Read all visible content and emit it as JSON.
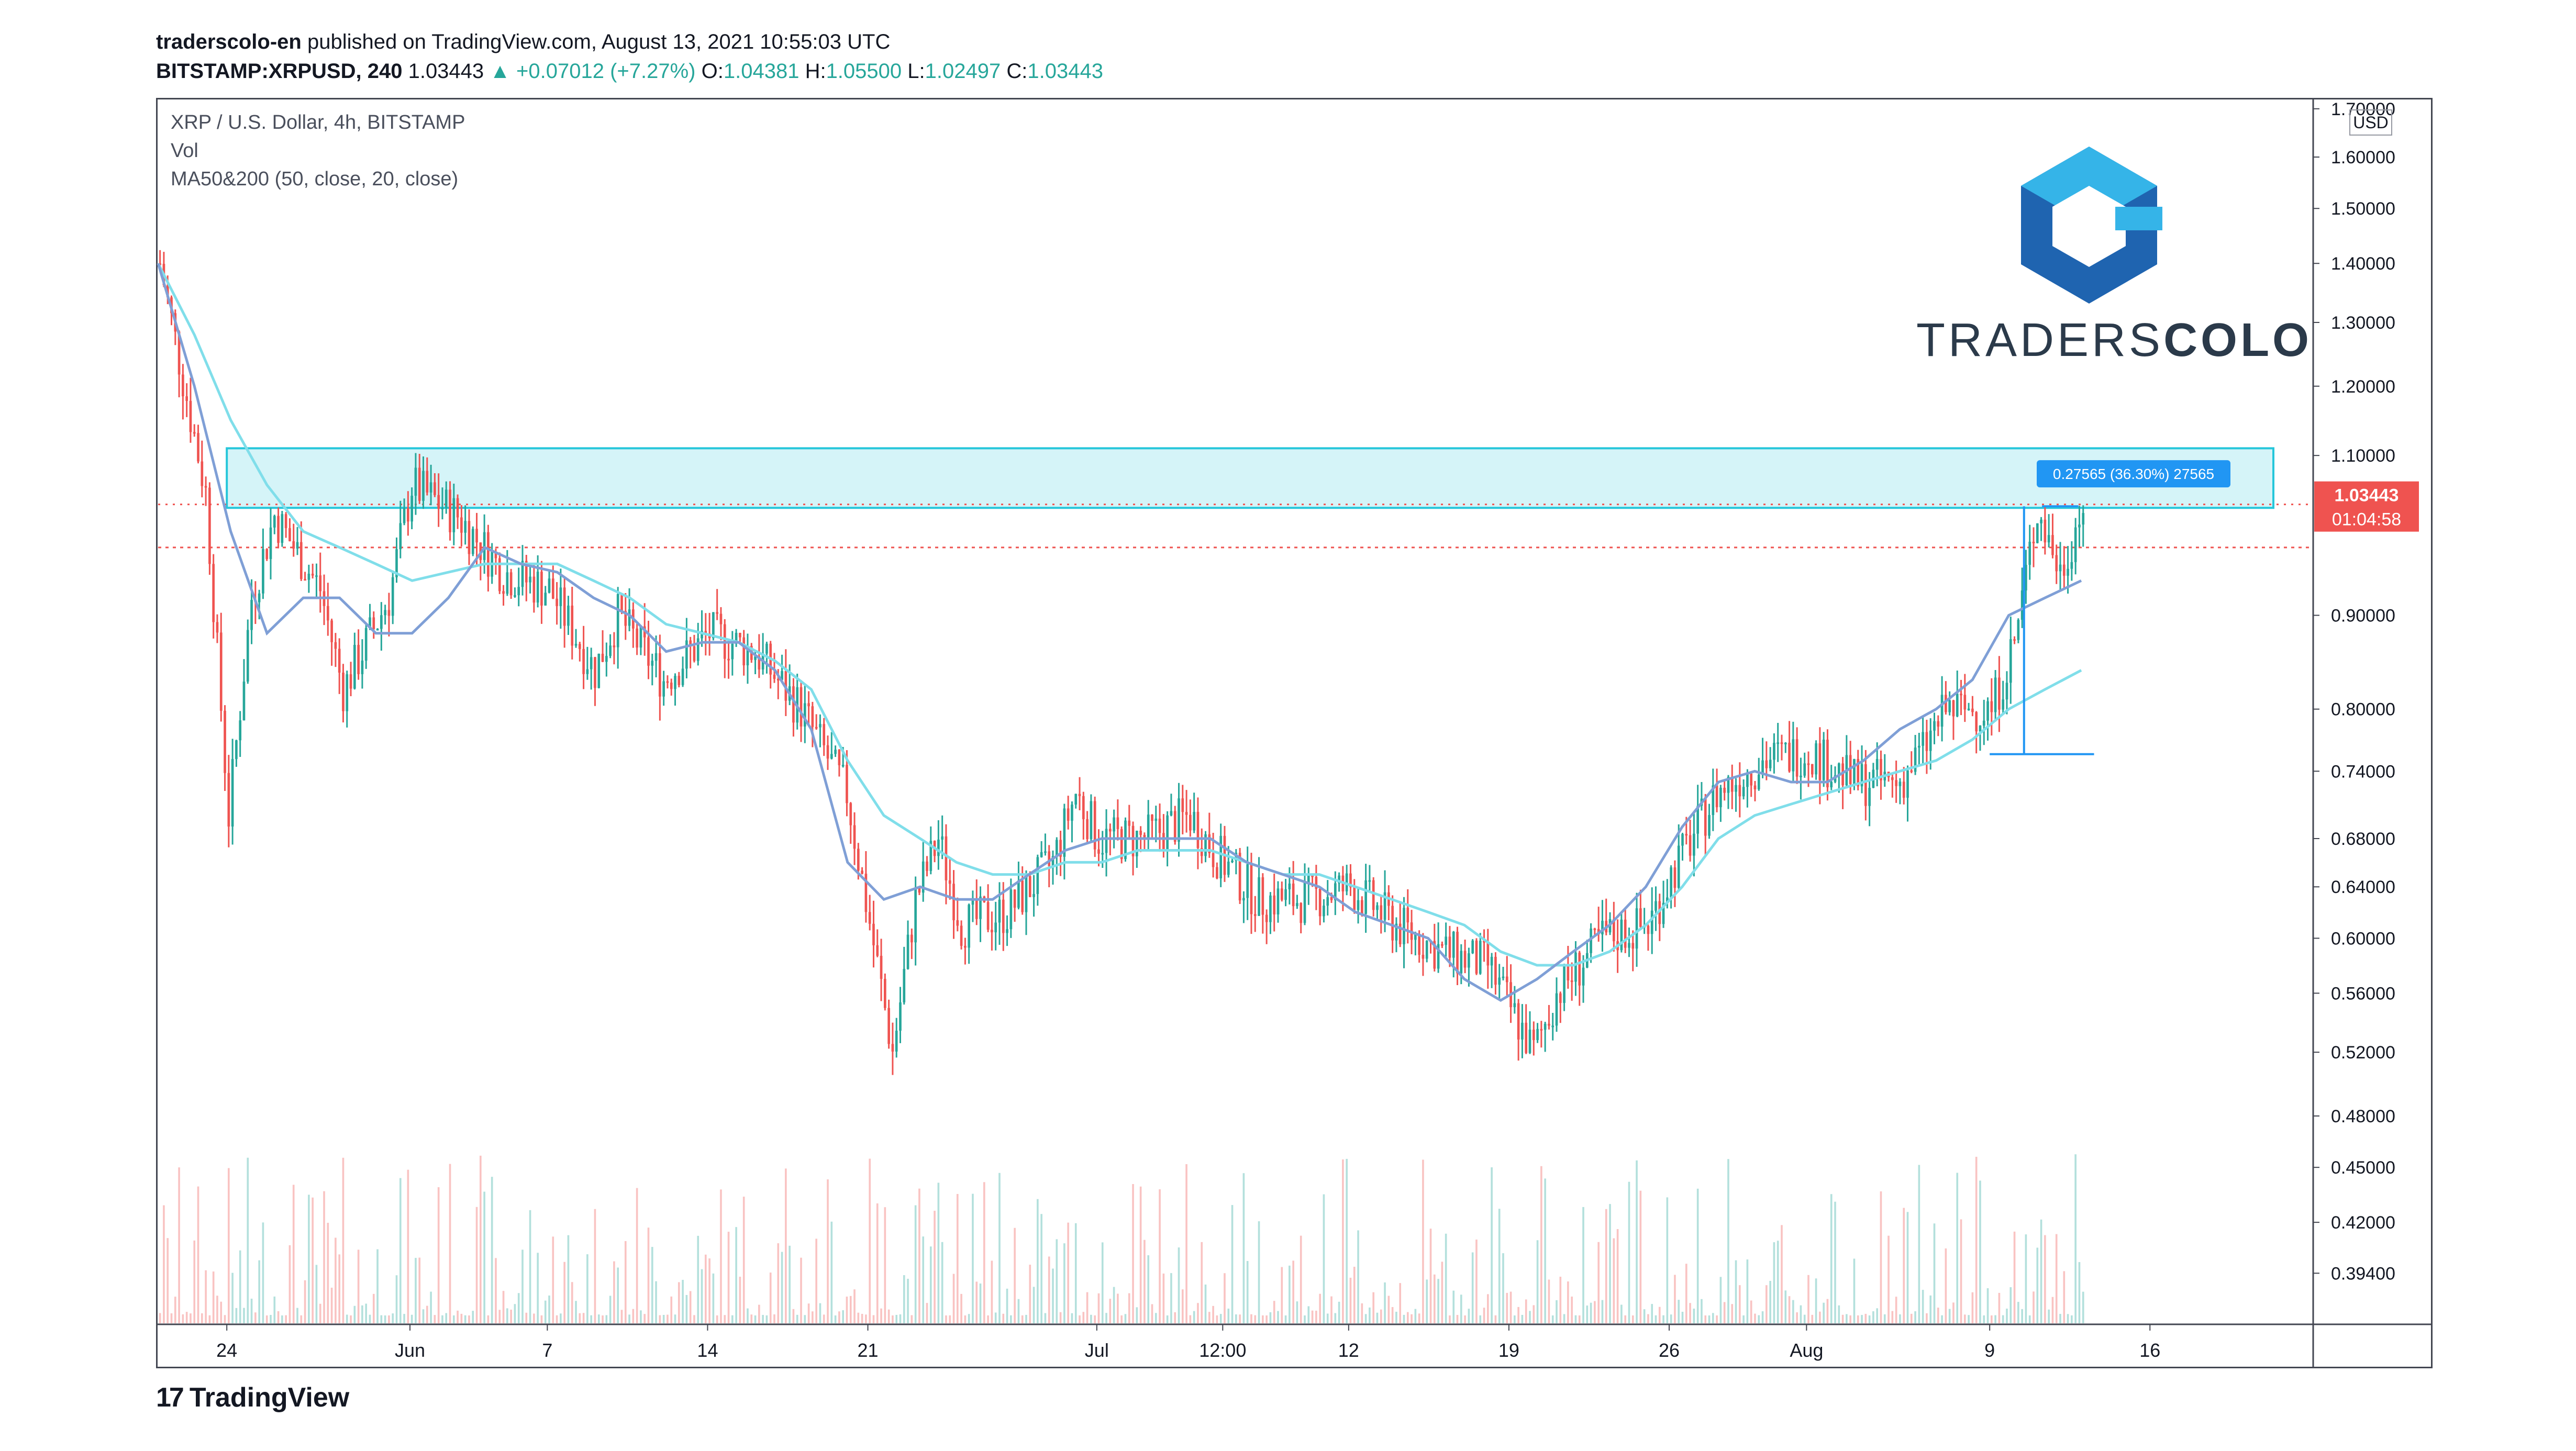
{
  "header": {
    "publisher": "traderscolo-en",
    "published_text": "published on TradingView.com, August 13, 2021 10:55:03 UTC",
    "symbol": "BITSTAMP:XRPUSD, 240",
    "last": "1.03443",
    "change": "▲ +0.07012 (+7.27%)",
    "o_label": "O:",
    "o_value": "1.04381",
    "h_label": "H:",
    "h_value": "1.05500",
    "l_label": "L:",
    "l_value": "1.02497",
    "c_label": "C:",
    "c_value": "1.03443"
  },
  "legend": {
    "line1": "XRP / U.S. Dollar, 4h, BITSTAMP",
    "line2": "Vol",
    "line3": "MA50&200 (50, close, 20, close)"
  },
  "brand": {
    "word_light": "TRADERS",
    "word_bold": "COLO"
  },
  "footer": {
    "logo_mark": "17",
    "logo_text": "TradingView"
  },
  "chart_data": {
    "type": "candlestick",
    "title": "XRP / U.S. Dollar, 4h, BITSTAMP",
    "price_unit": "USD",
    "y_scale": "log",
    "ylim": [
      0.37,
      1.72
    ],
    "y_ticks": [
      "1.70000",
      "1.60000",
      "1.50000",
      "1.40000",
      "1.30000",
      "1.20000",
      "1.10000",
      "0.90000",
      "0.80000",
      "0.74000",
      "0.68000",
      "0.64000",
      "0.60000",
      "0.56000",
      "0.52000",
      "0.48000",
      "0.45000",
      "0.42000",
      "0.39400"
    ],
    "x_ticks": [
      "24",
      "Jun",
      "7",
      "14",
      "21",
      "Jul",
      "12:00",
      "12",
      "19",
      "26",
      "Aug",
      "9",
      "16"
    ],
    "price_series": [
      {
        "t": "May 21",
        "price": 1.4
      },
      {
        "t": "May 23",
        "price": 1.05
      },
      {
        "t": "May 24",
        "price": 0.7
      },
      {
        "t": "May 25",
        "price": 0.92
      },
      {
        "t": "May 26",
        "price": 1.02
      },
      {
        "t": "May 28",
        "price": 0.93
      },
      {
        "t": "May 29",
        "price": 0.82
      },
      {
        "t": "May 31",
        "price": 0.92
      },
      {
        "t": "Jun 1",
        "price": 1.06
      },
      {
        "t": "Jun 3",
        "price": 1.02
      },
      {
        "t": "Jun 5",
        "price": 0.95
      },
      {
        "t": "Jun 7",
        "price": 0.93
      },
      {
        "t": "Jun 9",
        "price": 0.84
      },
      {
        "t": "Jun 10",
        "price": 0.9
      },
      {
        "t": "Jun 12",
        "price": 0.83
      },
      {
        "t": "Jun 14",
        "price": 0.88
      },
      {
        "t": "Jun 16",
        "price": 0.86
      },
      {
        "t": "Jun 18",
        "price": 0.8
      },
      {
        "t": "Jun 20",
        "price": 0.72
      },
      {
        "t": "Jun 22",
        "price": 0.52
      },
      {
        "t": "Jun 23",
        "price": 0.63
      },
      {
        "t": "Jun 24",
        "price": 0.68
      },
      {
        "t": "Jun 25",
        "price": 0.61
      },
      {
        "t": "Jun 27",
        "price": 0.62
      },
      {
        "t": "Jun 29",
        "price": 0.66
      },
      {
        "t": "Jun 30",
        "price": 0.72
      },
      {
        "t": "Jul 1",
        "price": 0.68
      },
      {
        "t": "Jul 3",
        "price": 0.68
      },
      {
        "t": "Jul 5",
        "price": 0.7
      },
      {
        "t": "Jul 6",
        "price": 0.67
      },
      {
        "t": "Jul 8",
        "price": 0.63
      },
      {
        "t": "Jul 10",
        "price": 0.63
      },
      {
        "t": "Jul 12",
        "price": 0.64
      },
      {
        "t": "Jul 14",
        "price": 0.61
      },
      {
        "t": "Jul 16",
        "price": 0.59
      },
      {
        "t": "Jul 18",
        "price": 0.58
      },
      {
        "t": "Jul 20",
        "price": 0.52
      },
      {
        "t": "Jul 21",
        "price": 0.56
      },
      {
        "t": "Jul 23",
        "price": 0.6
      },
      {
        "t": "Jul 25",
        "price": 0.61
      },
      {
        "t": "Jul 26",
        "price": 0.65
      },
      {
        "t": "Jul 28",
        "price": 0.72
      },
      {
        "t": "Jul 30",
        "price": 0.75
      },
      {
        "t": "Aug 1",
        "price": 0.76
      },
      {
        "t": "Aug 3",
        "price": 0.73
      },
      {
        "t": "Aug 5",
        "price": 0.73
      },
      {
        "t": "Aug 6",
        "price": 0.76
      },
      {
        "t": "Aug 7",
        "price": 0.8
      },
      {
        "t": "Aug 8",
        "price": 0.8
      },
      {
        "t": "Aug 9",
        "price": 0.8
      },
      {
        "t": "Aug 10",
        "price": 0.87
      },
      {
        "t": "Aug 11",
        "price": 1.03
      },
      {
        "t": "Aug 12",
        "price": 0.95
      },
      {
        "t": "Aug 13",
        "price": 1.034
      }
    ],
    "ma20": [
      1.4,
      1.2,
      1.0,
      0.88,
      0.92,
      0.92,
      0.88,
      0.88,
      0.92,
      0.98,
      0.96,
      0.95,
      0.92,
      0.9,
      0.86,
      0.87,
      0.87,
      0.84,
      0.78,
      0.66,
      0.63,
      0.64,
      0.63,
      0.63,
      0.65,
      0.67,
      0.68,
      0.68,
      0.68,
      0.68,
      0.66,
      0.65,
      0.64,
      0.62,
      0.61,
      0.6,
      0.57,
      0.555,
      0.57,
      0.59,
      0.61,
      0.64,
      0.69,
      0.73,
      0.74,
      0.73,
      0.73,
      0.75,
      0.78,
      0.8,
      0.83,
      0.9,
      0.92,
      0.94
    ],
    "ma50": [
      1.4,
      1.28,
      1.15,
      1.06,
      1.0,
      0.98,
      0.96,
      0.94,
      0.95,
      0.96,
      0.96,
      0.96,
      0.94,
      0.92,
      0.89,
      0.88,
      0.87,
      0.85,
      0.82,
      0.75,
      0.7,
      0.68,
      0.66,
      0.65,
      0.65,
      0.66,
      0.66,
      0.67,
      0.67,
      0.67,
      0.66,
      0.65,
      0.65,
      0.64,
      0.63,
      0.62,
      0.61,
      0.59,
      0.58,
      0.58,
      0.59,
      0.61,
      0.64,
      0.68,
      0.7,
      0.71,
      0.72,
      0.73,
      0.74,
      0.75,
      0.77,
      0.8,
      0.82,
      0.84
    ],
    "resistance_zone": {
      "low": 1.03,
      "high": 1.11
    },
    "current_price": {
      "value": "1.03443",
      "countdown": "01:04:58"
    },
    "reference_line": 0.98,
    "measure": {
      "label": "0.27565 (36.30%) 27565",
      "from": 0.756,
      "to": 1.032
    },
    "volume_visible": true
  }
}
